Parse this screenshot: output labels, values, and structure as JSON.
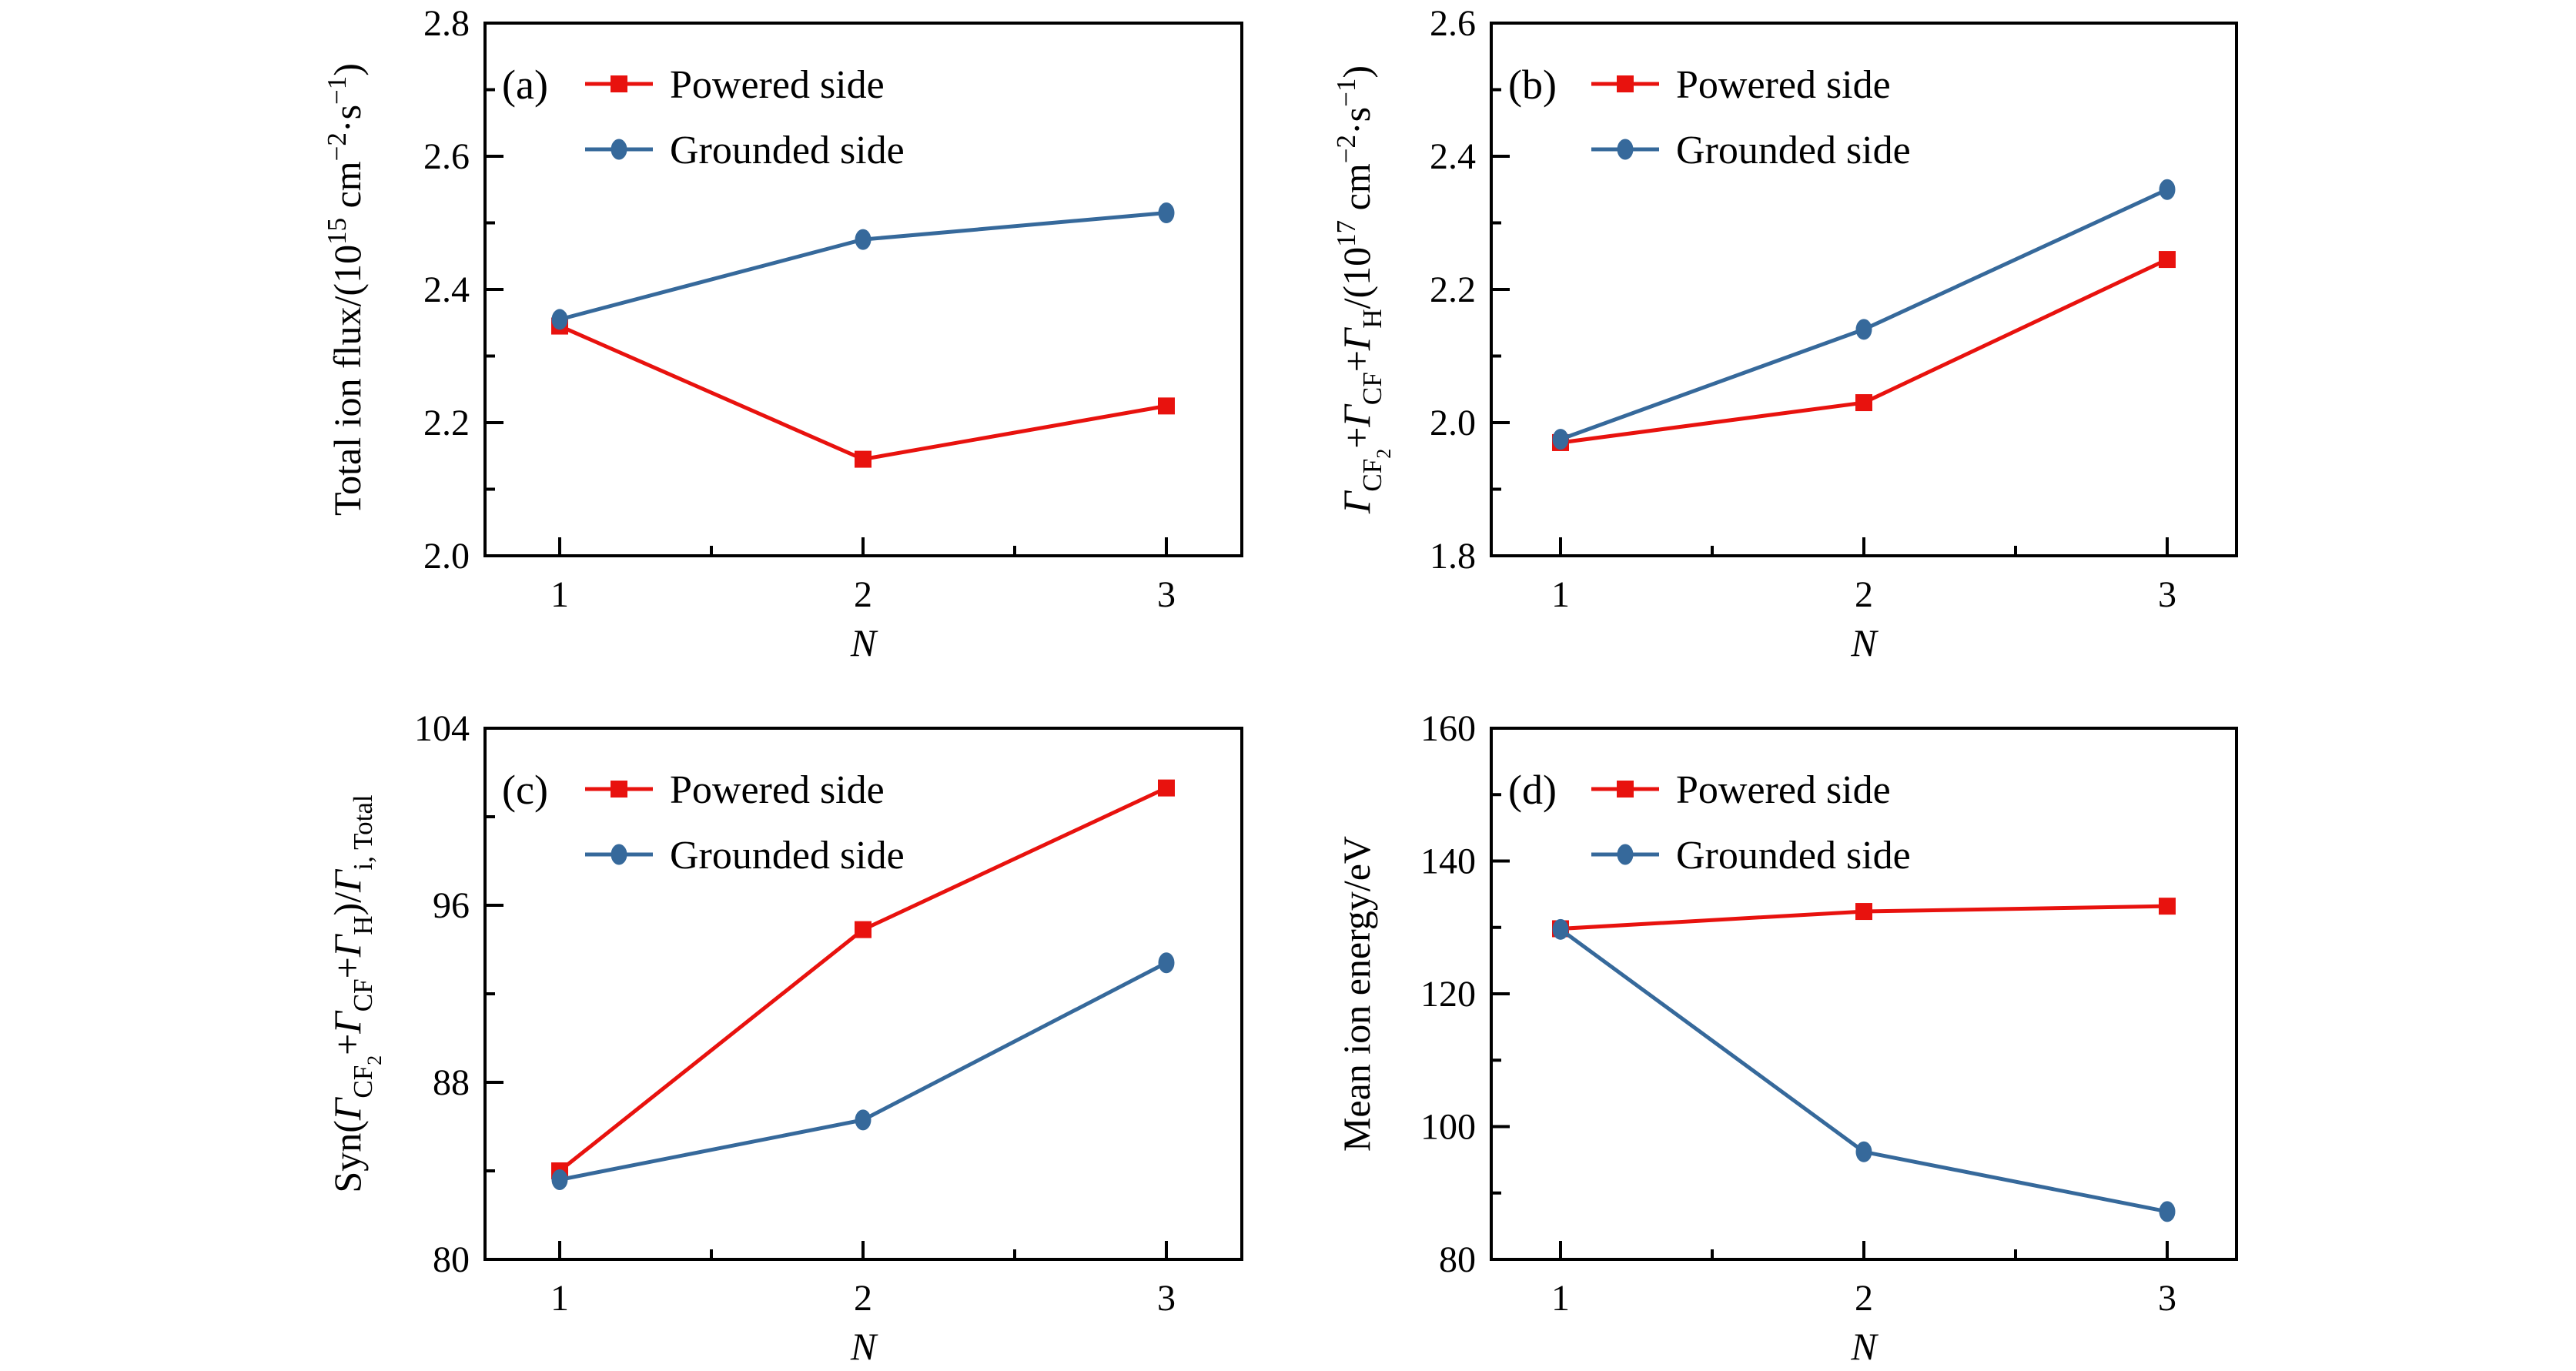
{
  "figure": {
    "background": "#ffffff",
    "description_note": "Four-panel line figure comparing Powered side and Grounded side versus N"
  },
  "colors": {
    "powered": "#e8120e",
    "grounded": "#36699b",
    "axis": "#000000",
    "text": "#000000"
  },
  "legend": {
    "powered_label": "Powered side",
    "grounded_label": "Grounded side"
  },
  "chart_data": [
    {
      "type": "line",
      "panel_tag": "(a)",
      "xlabel": "N",
      "x": [
        1,
        2,
        3
      ],
      "xtick_labels": [
        "1",
        "2",
        "3"
      ],
      "ylabel": "Total ion flux/(10^15 cm^-2·s^-1)",
      "ylabel_segments": [
        {
          "t": "Total ion flux/(10"
        },
        {
          "t": "15",
          "lv": "sup"
        },
        {
          "t": " cm"
        },
        {
          "t": "−2",
          "lv": "sup"
        },
        {
          "t": "·s"
        },
        {
          "t": "−1",
          "lv": "sup"
        },
        {
          "t": ")"
        }
      ],
      "ylim": [
        2.0,
        2.8
      ],
      "yticks": [
        2.0,
        2.2,
        2.4,
        2.6,
        2.8
      ],
      "ytick_labels": [
        "2.0",
        "2.2",
        "2.4",
        "2.6",
        "2.8"
      ],
      "yminors": [
        2.1,
        2.3,
        2.5,
        2.7
      ],
      "xminors": [
        1.5,
        2.5
      ],
      "grid": false,
      "legend_position": "top-left",
      "series": [
        {
          "name": "Powered side",
          "color_key": "powered",
          "marker": "square",
          "values": [
            2.345,
            2.145,
            2.225
          ]
        },
        {
          "name": "Grounded side",
          "color_key": "grounded",
          "marker": "circle",
          "values": [
            2.355,
            2.475,
            2.515
          ]
        }
      ]
    },
    {
      "type": "line",
      "panel_tag": "(b)",
      "xlabel": "N",
      "x": [
        1,
        2,
        3
      ],
      "xtick_labels": [
        "1",
        "2",
        "3"
      ],
      "ylabel": "Γ_CF2+Γ_CF+Γ_H/(10^17 cm^-2·s^-1)",
      "ylabel_segments": [
        {
          "t": "Γ",
          "it": true
        },
        {
          "t": "CF",
          "lv": "sub"
        },
        {
          "t": "2",
          "lv": "subsub"
        },
        {
          "t": "+"
        },
        {
          "t": "Γ",
          "it": true
        },
        {
          "t": "CF",
          "lv": "sub"
        },
        {
          "t": "+"
        },
        {
          "t": "Γ",
          "it": true
        },
        {
          "t": "H",
          "lv": "sub"
        },
        {
          "t": "/(10"
        },
        {
          "t": "17",
          "lv": "sup"
        },
        {
          "t": " cm"
        },
        {
          "t": "−2",
          "lv": "sup"
        },
        {
          "t": "·s"
        },
        {
          "t": "−1",
          "lv": "sup"
        },
        {
          "t": ")"
        }
      ],
      "ylim": [
        1.8,
        2.6
      ],
      "yticks": [
        1.8,
        2.0,
        2.2,
        2.4,
        2.6
      ],
      "ytick_labels": [
        "1.8",
        "2.0",
        "2.2",
        "2.4",
        "2.6"
      ],
      "yminors": [
        1.9,
        2.1,
        2.3,
        2.5
      ],
      "xminors": [
        1.5,
        2.5
      ],
      "grid": false,
      "legend_position": "top-left",
      "series": [
        {
          "name": "Powered side",
          "color_key": "powered",
          "marker": "square",
          "values": [
            1.97,
            2.03,
            2.245
          ]
        },
        {
          "name": "Grounded side",
          "color_key": "grounded",
          "marker": "circle",
          "values": [
            1.975,
            2.14,
            2.35
          ]
        }
      ]
    },
    {
      "type": "line",
      "panel_tag": "(c)",
      "xlabel": "N",
      "x": [
        1,
        2,
        3
      ],
      "xtick_labels": [
        "1",
        "2",
        "3"
      ],
      "ylabel": "Syn(Γ_CF2+Γ_CF+Γ_H)/Γ_i, Total",
      "ylabel_segments": [
        {
          "t": "Syn("
        },
        {
          "t": "Γ",
          "it": true
        },
        {
          "t": "CF",
          "lv": "sub"
        },
        {
          "t": "2",
          "lv": "subsub"
        },
        {
          "t": "+"
        },
        {
          "t": "Γ",
          "it": true
        },
        {
          "t": "CF",
          "lv": "sub"
        },
        {
          "t": "+"
        },
        {
          "t": "Γ",
          "it": true
        },
        {
          "t": "H",
          "lv": "sub"
        },
        {
          "t": ")/"
        },
        {
          "t": "Γ",
          "it": true
        },
        {
          "t": "i, Total",
          "lv": "sub"
        }
      ],
      "ylim": [
        80,
        104
      ],
      "yticks": [
        80,
        88,
        96,
        104
      ],
      "ytick_labels": [
        "80",
        "88",
        "96",
        "104"
      ],
      "yminors": [
        84,
        92,
        100
      ],
      "xminors": [
        1.5,
        2.5
      ],
      "grid": false,
      "legend_position": "top-left",
      "series": [
        {
          "name": "Powered side",
          "color_key": "powered",
          "marker": "square",
          "values": [
            84.0,
            94.9,
            101.3
          ]
        },
        {
          "name": "Grounded side",
          "color_key": "grounded",
          "marker": "circle",
          "values": [
            83.6,
            86.3,
            93.4
          ]
        }
      ]
    },
    {
      "type": "line",
      "panel_tag": "(d)",
      "xlabel": "N",
      "x": [
        1,
        2,
        3
      ],
      "xtick_labels": [
        "1",
        "2",
        "3"
      ],
      "ylabel": "Mean ion energy/eV",
      "ylabel_segments": [
        {
          "t": "Mean ion energy/eV"
        }
      ],
      "ylim": [
        80,
        160
      ],
      "yticks": [
        80,
        100,
        120,
        140,
        160
      ],
      "ytick_labels": [
        "80",
        "100",
        "120",
        "140",
        "160"
      ],
      "yminors": [
        90,
        110,
        130,
        150
      ],
      "xminors": [
        1.5,
        2.5
      ],
      "grid": false,
      "legend_position": "top-left",
      "series": [
        {
          "name": "Powered side",
          "color_key": "powered",
          "marker": "square",
          "values": [
            129.8,
            132.4,
            133.2
          ]
        },
        {
          "name": "Grounded side",
          "color_key": "grounded",
          "marker": "circle",
          "values": [
            129.7,
            96.2,
            87.2
          ]
        }
      ]
    }
  ]
}
